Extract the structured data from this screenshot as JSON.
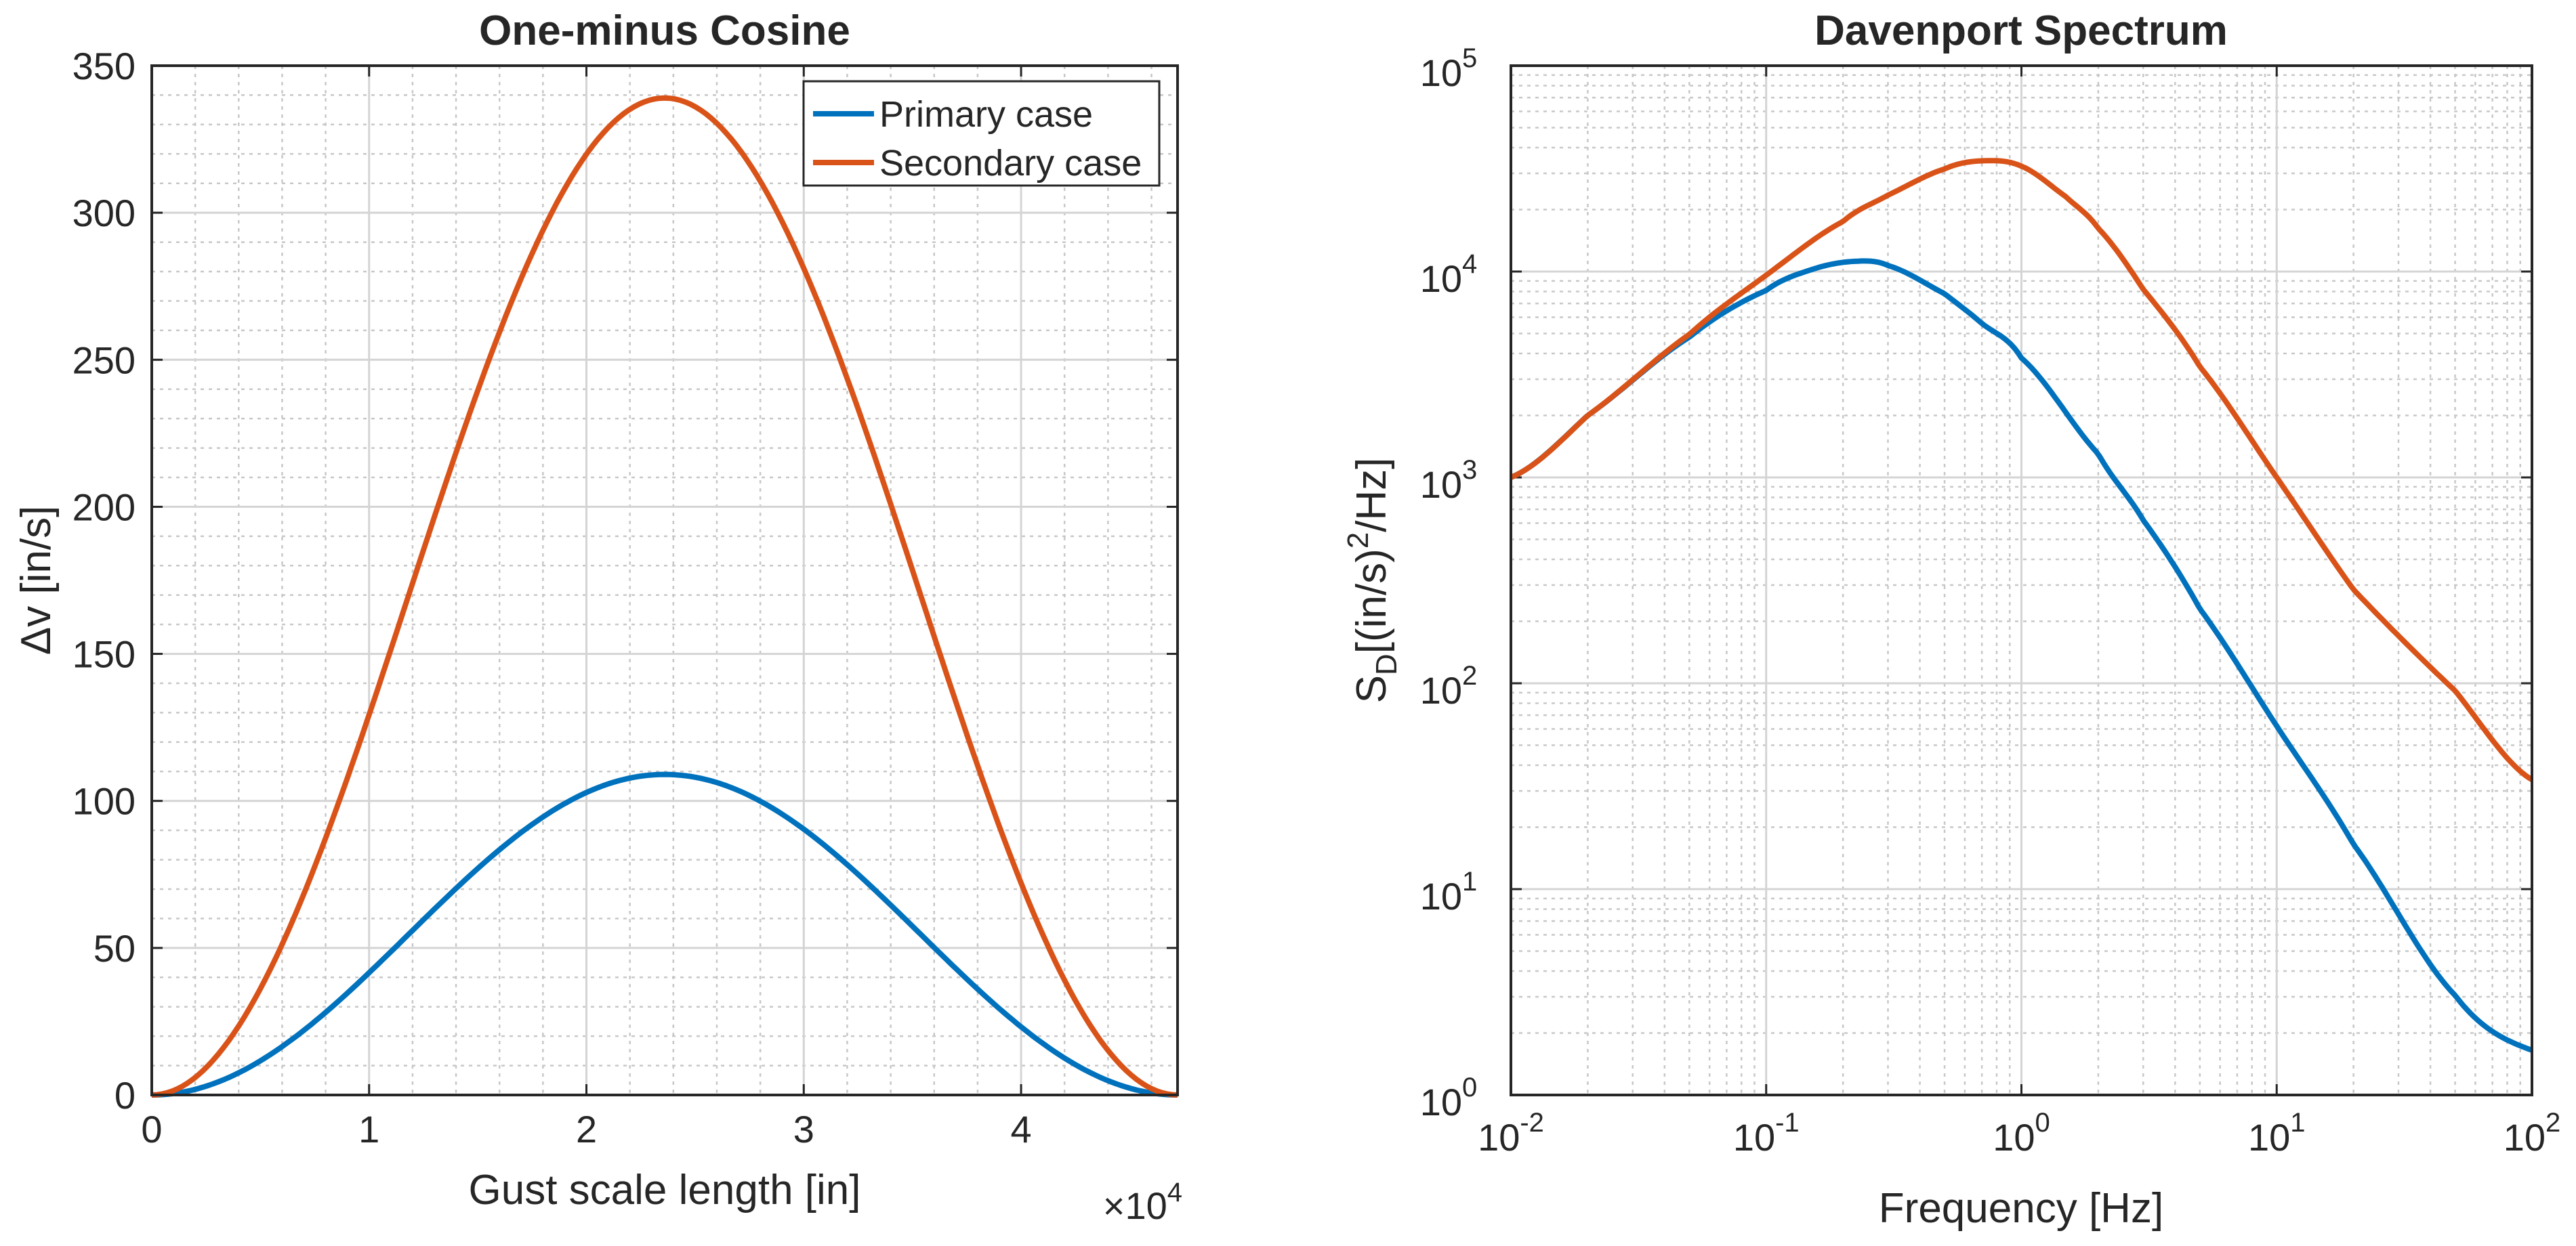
{
  "chart_data": [
    {
      "type": "line",
      "title": "One-minus Cosine",
      "xlabel": "Gust scale length [in]",
      "ylabel": "Δv [in/s]",
      "x_exponent_label": "×10",
      "x_exponent_power": "4",
      "xlim": [
        0,
        4.72
      ],
      "ylim": [
        0,
        350
      ],
      "x_ticks": [
        0,
        1,
        2,
        3,
        4
      ],
      "x_tick_labels": [
        "0",
        "1",
        "2",
        "3",
        "4"
      ],
      "y_ticks": [
        0,
        50,
        100,
        150,
        200,
        250,
        300,
        350
      ],
      "y_tick_labels": [
        "0",
        "50",
        "100",
        "150",
        "200",
        "250",
        "300",
        "350"
      ],
      "grid": true,
      "minor_grid": true,
      "legend_position": "top-right",
      "series": [
        {
          "name": "Primary case",
          "color": "#0072bd",
          "x": [
            0,
            0.236,
            0.472,
            0.708,
            0.944,
            1.18,
            1.416,
            1.652,
            1.888,
            2.124,
            2.36,
            2.596,
            2.832,
            3.068,
            3.304,
            3.54,
            3.776,
            4.012,
            4.248,
            4.484,
            4.72
          ],
          "y": [
            0,
            2.7,
            10.4,
            22.3,
            37.5,
            54.5,
            71.5,
            86.7,
            98.6,
            106.3,
            109,
            106.3,
            98.6,
            86.7,
            71.5,
            54.5,
            37.5,
            22.3,
            10.4,
            2.7,
            0
          ]
        },
        {
          "name": "Secondary case",
          "color": "#d95319",
          "x": [
            0,
            0.236,
            0.472,
            0.708,
            0.944,
            1.18,
            1.416,
            1.652,
            1.888,
            2.124,
            2.36,
            2.596,
            2.832,
            3.068,
            3.304,
            3.54,
            3.776,
            4.012,
            4.248,
            4.484,
            4.72
          ],
          "y": [
            0,
            8.3,
            32.4,
            69.6,
            116.5,
            169.5,
            222.5,
            269.4,
            306.6,
            330.7,
            339,
            330.7,
            306.6,
            269.4,
            222.5,
            169.5,
            116.5,
            69.6,
            32.4,
            8.3,
            0
          ]
        }
      ]
    },
    {
      "type": "line",
      "title": "Davenport Spectrum",
      "xlabel": "Frequency [Hz]",
      "ylabel_main": "S",
      "ylabel_sub": "D",
      "ylabel_mid": "[(in/s)",
      "ylabel_sup": "2",
      "ylabel_end": "/Hz]",
      "x_scale": "log",
      "y_scale": "log",
      "xlim": [
        0.01,
        100
      ],
      "ylim": [
        1,
        100000
      ],
      "x_ticks": [
        0.01,
        0.1,
        1,
        10,
        100
      ],
      "x_tick_bases": [
        "10",
        "10",
        "10",
        "10",
        "10"
      ],
      "x_tick_powers": [
        "-2",
        "-1",
        "0",
        "1",
        "2"
      ],
      "y_ticks": [
        1,
        10,
        100,
        1000,
        10000,
        100000
      ],
      "y_tick_bases": [
        "10",
        "10",
        "10",
        "10",
        "10",
        "10"
      ],
      "y_tick_powers": [
        "0",
        "1",
        "2",
        "3",
        "4",
        "5"
      ],
      "grid": true,
      "minor_grid": true,
      "series": [
        {
          "name": "Primary case",
          "color": "#0072bd",
          "x": [
            0.01,
            0.02,
            0.05,
            0.1,
            0.15,
            0.22,
            0.3,
            0.5,
            0.7,
            1,
            2,
            3,
            5,
            10,
            20,
            50,
            100
          ],
          "y": [
            1000,
            2000,
            4800,
            8100,
            10200,
            11200,
            10700,
            7800,
            5600,
            3800,
            1300,
            620,
            230,
            62,
            16.5,
            3.05,
            1.65
          ]
        },
        {
          "name": "Secondary case",
          "color": "#d95319",
          "x": [
            0.01,
            0.02,
            0.05,
            0.1,
            0.2,
            0.3,
            0.5,
            0.7,
            1,
            1.5,
            2,
            3,
            5,
            10,
            20,
            50,
            100
          ],
          "y": [
            1000,
            2000,
            4950,
            9600,
            17500,
            23500,
            31500,
            34500,
            32500,
            23000,
            16200,
            8200,
            3450,
            1000,
            285,
            92,
            34
          ]
        }
      ]
    }
  ]
}
